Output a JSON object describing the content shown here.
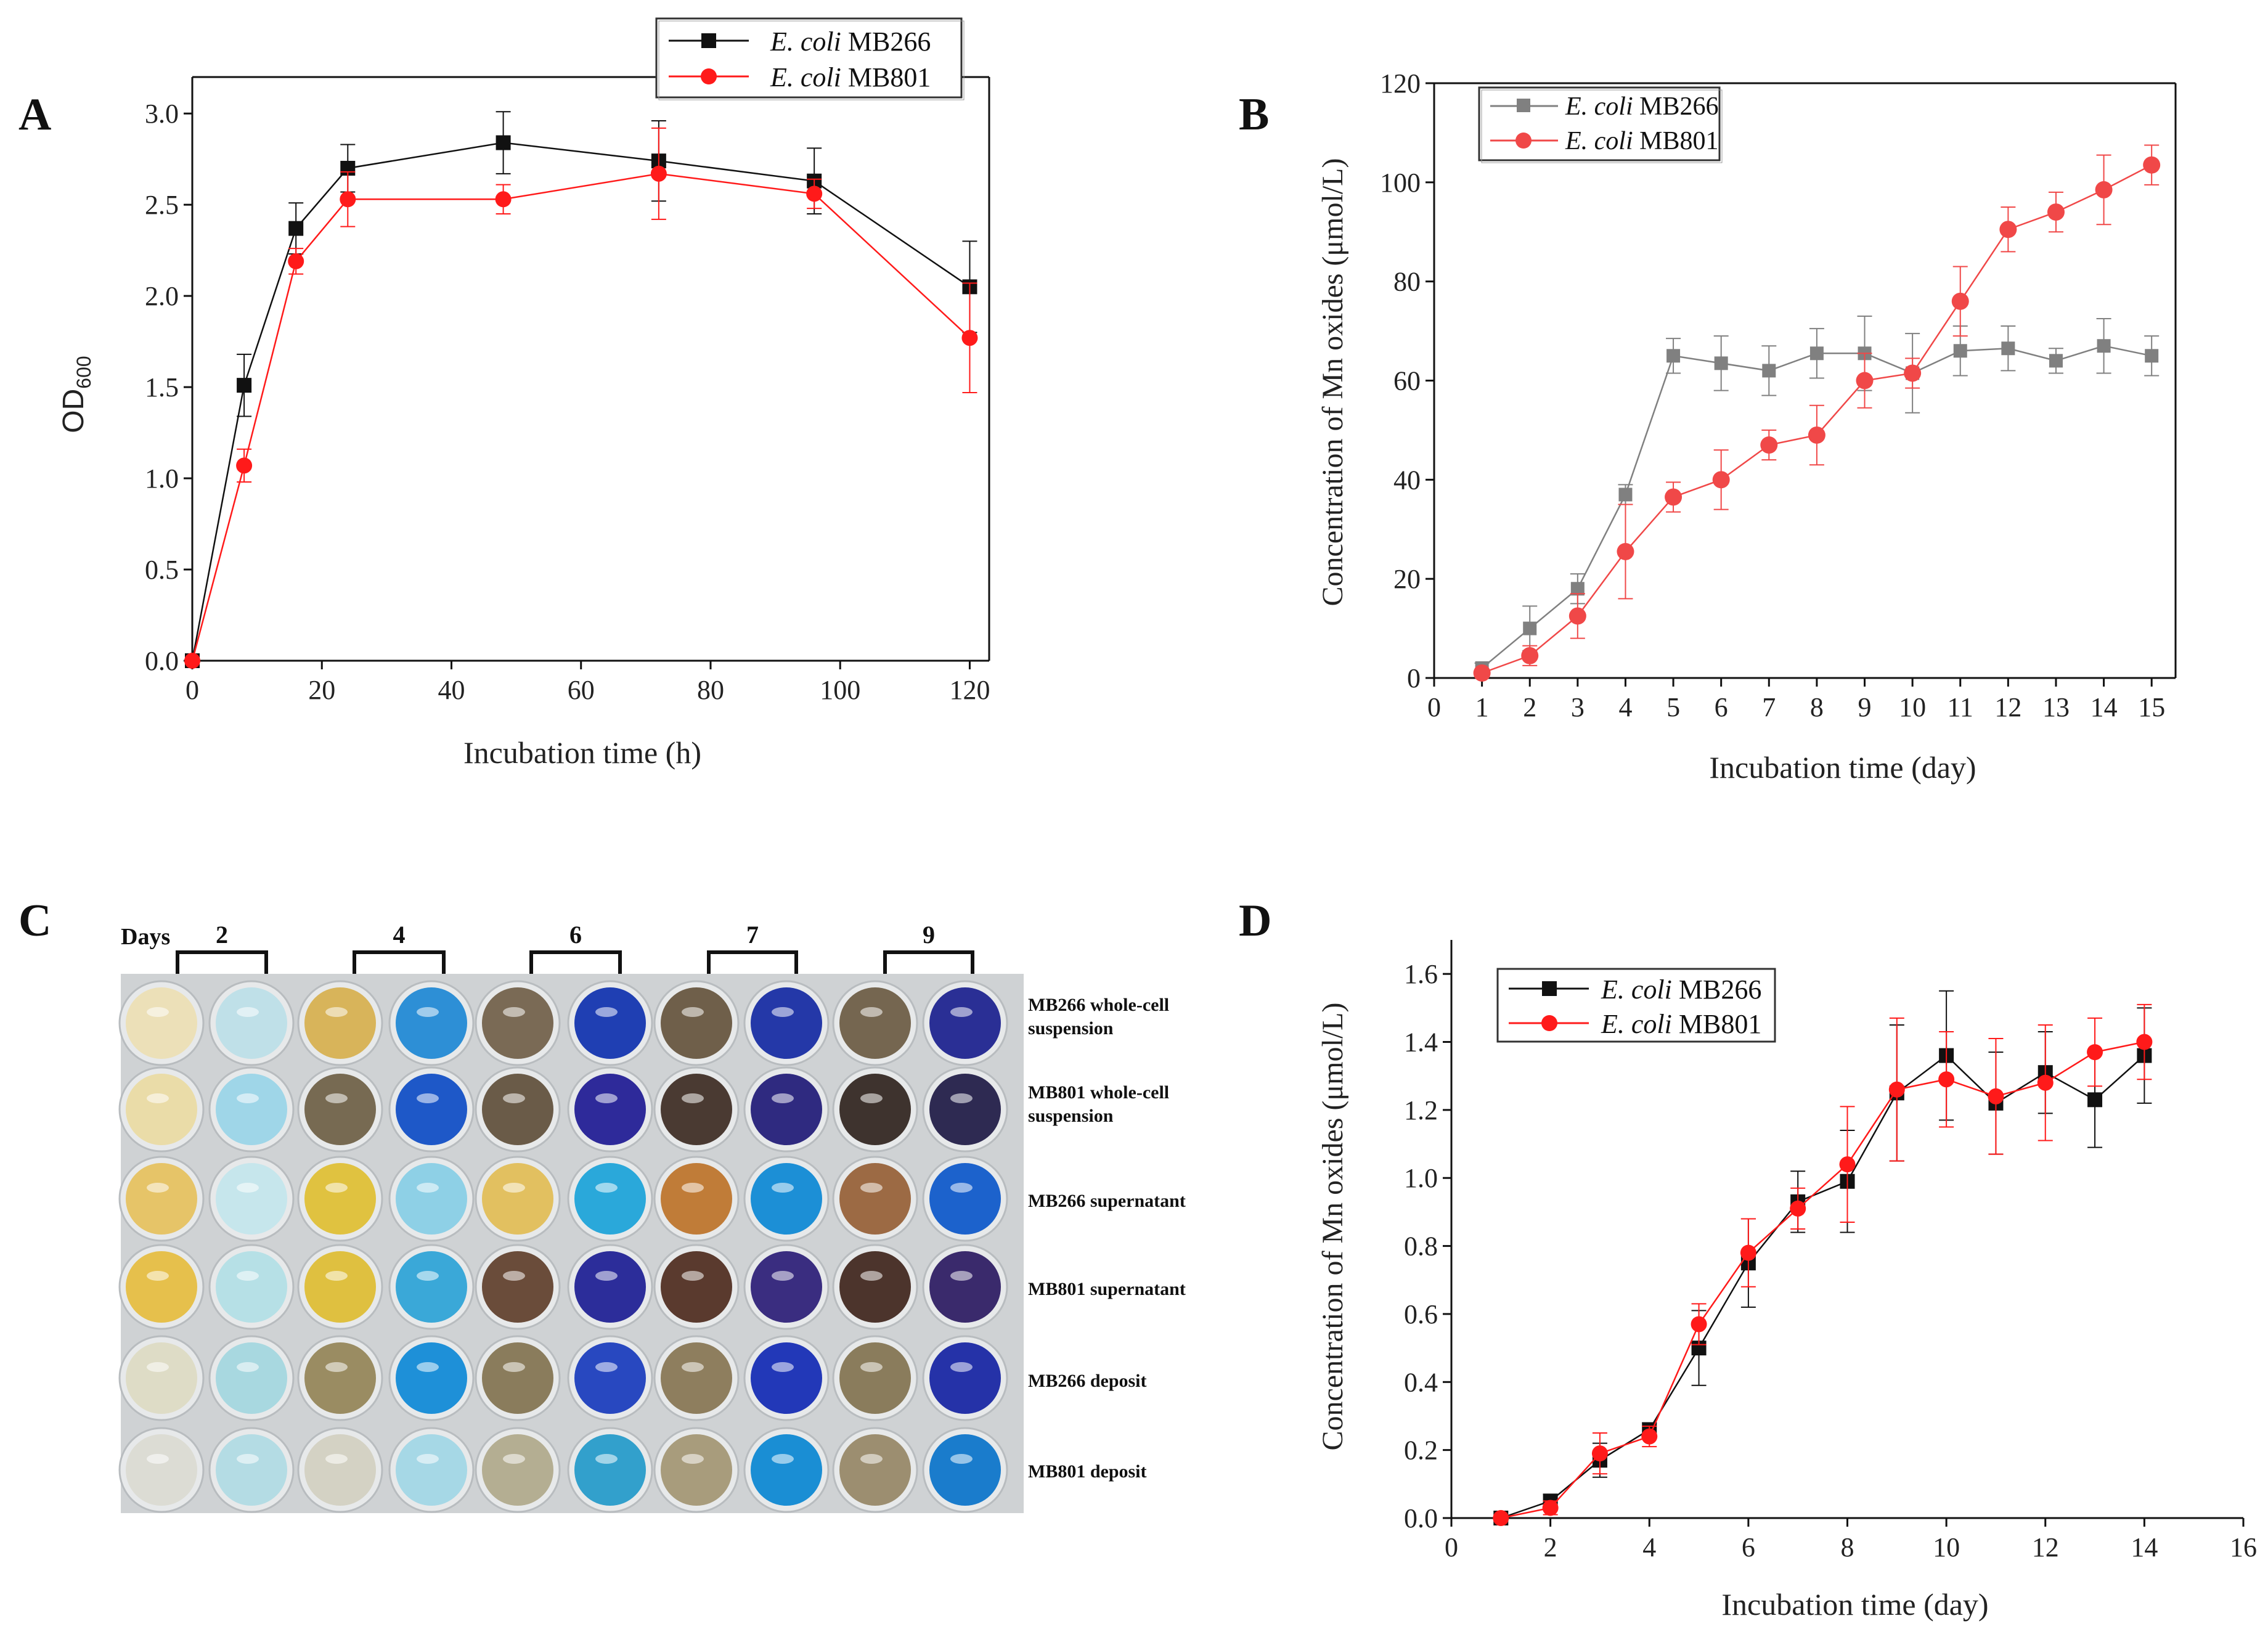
{
  "figure": {
    "panels": {
      "a": "A",
      "b": "B",
      "c": "C",
      "d": "D"
    }
  },
  "chart_data": [
    {
      "id": "A",
      "type": "line",
      "title": "",
      "xlabel": "Incubation time (h)",
      "ylabel_main": "OD",
      "ylabel_sub": "600",
      "xlim": [
        0,
        123
      ],
      "ylim": [
        0,
        3.2
      ],
      "xticks": [
        0,
        20,
        40,
        60,
        80,
        100,
        120
      ],
      "yticks": [
        0.0,
        0.5,
        1.0,
        1.5,
        2.0,
        2.5,
        3.0
      ],
      "ytick_labels": [
        "0.0",
        "0.5",
        "1.0",
        "1.5",
        "2.0",
        "2.5",
        "3.0"
      ],
      "xtick_labels": [
        "0",
        "20",
        "40",
        "60",
        "80",
        "100",
        "120"
      ],
      "legend_position": "top-right, outside",
      "series": [
        {
          "name_italic": "E. coli",
          "name_rest": " MB266",
          "color": "#111111",
          "marker": "square",
          "x": [
            0,
            8,
            16,
            24,
            48,
            72,
            96,
            120
          ],
          "y": [
            0.0,
            1.51,
            2.37,
            2.7,
            2.84,
            2.74,
            2.63,
            2.05
          ],
          "err": [
            0,
            0.17,
            0.14,
            0.13,
            0.17,
            0.22,
            0.18,
            0.25
          ]
        },
        {
          "name_italic": "E. coli",
          "name_rest": " MB801",
          "color": "#ff1a1a",
          "marker": "circle",
          "x": [
            0,
            8,
            16,
            24,
            48,
            72,
            96,
            120
          ],
          "y": [
            0.0,
            1.07,
            2.19,
            2.53,
            2.53,
            2.67,
            2.56,
            1.77
          ],
          "err": [
            0,
            0.09,
            0.07,
            0.15,
            0.08,
            0.25,
            0.08,
            0.3
          ]
        }
      ]
    },
    {
      "id": "B",
      "type": "line",
      "title": "",
      "xlabel": "Incubation time (day)",
      "ylabel": "Concentration of Mn oxides (μmol/L)",
      "xlim": [
        0,
        15.5
      ],
      "ylim": [
        0,
        120
      ],
      "xticks": [
        0,
        1,
        2,
        3,
        4,
        5,
        6,
        7,
        8,
        9,
        10,
        11,
        12,
        13,
        14,
        15
      ],
      "xtick_labels": [
        "0",
        "1",
        "2",
        "3",
        "4",
        "5",
        "6",
        "7",
        "8",
        "9",
        "10",
        "11",
        "12",
        "13",
        "14",
        "15"
      ],
      "yticks": [
        0,
        20,
        40,
        60,
        80,
        100,
        120
      ],
      "ytick_labels": [
        "0",
        "20",
        "40",
        "60",
        "80",
        "100",
        "120"
      ],
      "legend_position": "top-left",
      "series": [
        {
          "name_italic": "E. coli",
          "name_rest": " MB266",
          "color": "#808080",
          "marker": "square",
          "x": [
            1,
            2,
            3,
            4,
            5,
            6,
            7,
            8,
            9,
            10,
            11,
            12,
            13,
            14,
            15
          ],
          "y": [
            2,
            10,
            18,
            37,
            65,
            63.5,
            62,
            65.5,
            65.5,
            61.5,
            66,
            66.5,
            64,
            67,
            65
          ],
          "err": [
            1,
            4.5,
            3,
            2,
            3.5,
            5.5,
            5,
            5,
            7.5,
            8,
            5,
            4.5,
            2.5,
            5.5,
            4
          ]
        },
        {
          "name_italic": "E. coli",
          "name_rest": " MB801",
          "color": "#f04848",
          "marker": "circle",
          "x": [
            1,
            2,
            3,
            4,
            5,
            6,
            7,
            8,
            9,
            10,
            11,
            12,
            13,
            14,
            15
          ],
          "y": [
            1,
            4.5,
            12.5,
            25.5,
            36.5,
            40,
            47,
            49,
            60,
            61.5,
            76,
            90.5,
            94,
            98.5,
            103.5
          ],
          "err": [
            0.5,
            2,
            4.5,
            9.5,
            3,
            6,
            3,
            6,
            5.5,
            3,
            7,
            4.5,
            4,
            7,
            4
          ]
        }
      ]
    },
    {
      "id": "D",
      "type": "line",
      "title": "",
      "xlabel": "Incubation time (day)",
      "ylabel": "Concentration of Mn oxides (μmol/L)",
      "xlim": [
        0,
        16
      ],
      "ylim": [
        0,
        1.7
      ],
      "xticks": [
        0,
        2,
        4,
        6,
        8,
        10,
        12,
        14,
        16
      ],
      "xtick_labels": [
        "0",
        "2",
        "4",
        "6",
        "8",
        "10",
        "12",
        "14",
        "16"
      ],
      "yticks": [
        0.0,
        0.2,
        0.4,
        0.6,
        0.8,
        1.0,
        1.2,
        1.4,
        1.6
      ],
      "ytick_labels": [
        "0.0",
        "0.2",
        "0.4",
        "0.6",
        "0.8",
        "1.0",
        "1.2",
        "1.4",
        "1.6"
      ],
      "legend_position": "top-left",
      "series": [
        {
          "name_italic": "E. coli",
          "name_rest": " MB266",
          "color": "#111111",
          "marker": "square",
          "x": [
            1,
            2,
            3,
            4,
            5,
            6,
            7,
            8,
            9,
            10,
            11,
            12,
            13,
            14
          ],
          "y": [
            0.0,
            0.05,
            0.17,
            0.26,
            0.5,
            0.75,
            0.93,
            0.99,
            1.25,
            1.36,
            1.22,
            1.31,
            1.23,
            1.36
          ],
          "err": [
            0,
            0.02,
            0.05,
            0.02,
            0.11,
            0.13,
            0.09,
            0.15,
            0.2,
            0.19,
            0.15,
            0.12,
            0.14,
            0.14
          ]
        },
        {
          "name_italic": "E. coli",
          "name_rest": " MB801",
          "color": "#ff1a1a",
          "marker": "circle",
          "x": [
            1,
            2,
            3,
            4,
            5,
            6,
            7,
            8,
            9,
            10,
            11,
            12,
            13,
            14
          ],
          "y": [
            0.0,
            0.03,
            0.19,
            0.24,
            0.57,
            0.78,
            0.91,
            1.04,
            1.26,
            1.29,
            1.24,
            1.28,
            1.37,
            1.4
          ],
          "err": [
            0,
            0.02,
            0.06,
            0.03,
            0.06,
            0.1,
            0.06,
            0.17,
            0.21,
            0.14,
            0.17,
            0.17,
            0.1,
            0.11
          ]
        }
      ]
    }
  ],
  "plate": {
    "days_label": "Days",
    "groups": [
      "2",
      "4",
      "6",
      "7",
      "9"
    ],
    "row_labels": [
      [
        "MB266 whole-cell",
        "suspension"
      ],
      [
        "MB801 whole-cell",
        "suspension"
      ],
      [
        "MB266 supernatant"
      ],
      [
        "MB801 supernatant"
      ],
      [
        "MB266 deposit"
      ],
      [
        "MB801 deposit"
      ]
    ],
    "well_colors": [
      [
        "#ece0b8",
        "#bfe0e8",
        "#d8b45a",
        "#2d8fd6",
        "#7a6a55",
        "#1f3fb3",
        "#6f5f4a",
        "#2438a8",
        "#756650",
        "#2a2f95"
      ],
      [
        "#eadca8",
        "#9fd6e8",
        "#776a52",
        "#1e58c8",
        "#6a5b48",
        "#2e2a9a",
        "#4a3a32",
        "#2f2a80",
        "#3e332e",
        "#2e2a52"
      ],
      [
        "#e6c468",
        "#c6e6ec",
        "#e0c240",
        "#8ed0e6",
        "#e2c060",
        "#2aa8da",
        "#c07c38",
        "#1c8fd6",
        "#9c6a44",
        "#1c62cc"
      ],
      [
        "#e6c04c",
        "#b6e0e6",
        "#dfc040",
        "#3aa8d8",
        "#6a4c3a",
        "#2c2d9a",
        "#5a3a2e",
        "#3a2d80",
        "#4c342c",
        "#3a2a6c"
      ],
      [
        "#dedcc6",
        "#a8d8e0",
        "#9a8c62",
        "#1e90d8",
        "#8a7c5c",
        "#2848c0",
        "#8e7e5e",
        "#2238b8",
        "#8a7c5c",
        "#2532a8"
      ],
      [
        "#dcdcd4",
        "#b4dce4",
        "#d4d2c4",
        "#a6d8e6",
        "#b4ae92",
        "#32a0cc",
        "#a89c7c",
        "#1a8ed4",
        "#9c8e70",
        "#1a7ccc"
      ]
    ]
  }
}
